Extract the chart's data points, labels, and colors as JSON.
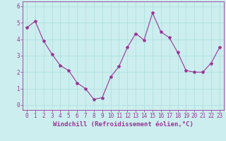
{
  "x": [
    0,
    1,
    2,
    3,
    4,
    5,
    6,
    7,
    8,
    9,
    10,
    11,
    12,
    13,
    14,
    15,
    16,
    17,
    18,
    19,
    20,
    21,
    22,
    23
  ],
  "y": [
    4.7,
    5.1,
    3.9,
    3.1,
    2.4,
    2.1,
    1.35,
    1.0,
    0.35,
    0.45,
    1.7,
    2.35,
    3.5,
    4.35,
    3.95,
    5.6,
    4.45,
    4.1,
    3.2,
    2.1,
    2.0,
    2.0,
    2.55,
    3.5
  ],
  "line_color": "#993399",
  "marker": "*",
  "marker_size": 3,
  "bg_color": "#cceeee",
  "grid_color": "#aadddd",
  "xlabel": "Windchill (Refroidissement éolien,°C)",
  "ylabel": "",
  "title": "",
  "xlim": [
    -0.5,
    23.5
  ],
  "ylim": [
    -0.3,
    6.3
  ],
  "yticks": [
    0,
    1,
    2,
    3,
    4,
    5,
    6
  ],
  "xticks": [
    0,
    1,
    2,
    3,
    4,
    5,
    6,
    7,
    8,
    9,
    10,
    11,
    12,
    13,
    14,
    15,
    16,
    17,
    18,
    19,
    20,
    21,
    22,
    23
  ],
  "tick_fontsize": 5.5,
  "label_fontsize": 6.5
}
